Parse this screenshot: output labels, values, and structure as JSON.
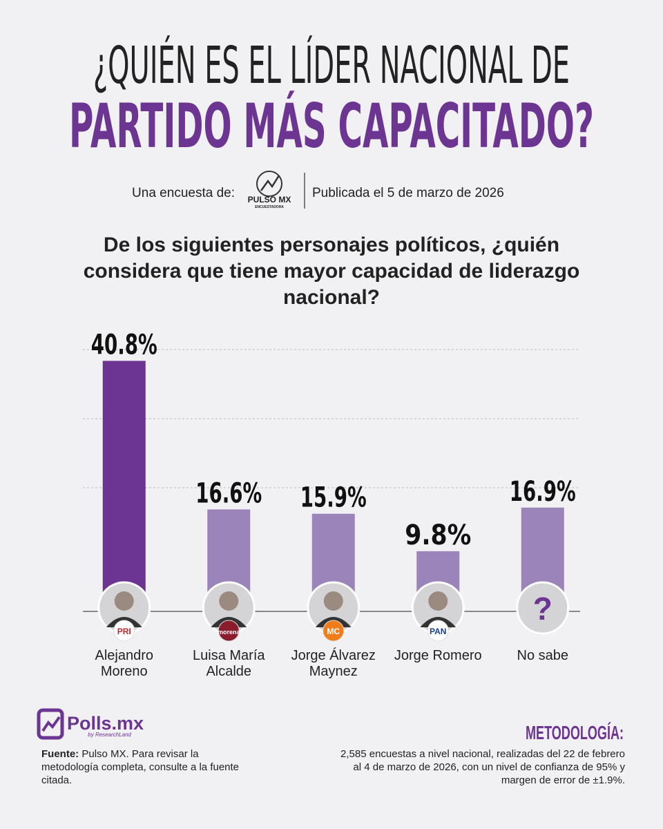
{
  "header": {
    "title_line1": "¿QUIÉN ES EL LÍDER NACIONAL DE",
    "title_line2": "PARTIDO MÁS CAPACITADO?",
    "survey_by": "Una encuesta de:",
    "pollster": "PULSO MX",
    "pollster_sub": "ENCUESTADORA",
    "published": "Publicada el 5 de marzo de 2026"
  },
  "chart_data": {
    "type": "bar",
    "title": "De los siguientes personajes políticos, ¿quién considera que tiene mayor capacidad de liderazgo nacional?",
    "categories": [
      "Alejandro Moreno",
      "Luisa María Alcalde",
      "Jorge Álvarez Maynez",
      "Jorge Romero",
      "No sabe"
    ],
    "values": [
      40.8,
      16.6,
      15.9,
      9.8,
      16.9
    ],
    "value_labels": [
      "40.8%",
      "16.6%",
      "15.9%",
      "9.8%",
      "16.9%"
    ],
    "colors": [
      "#6b3591",
      "#9b84b9",
      "#9b84b9",
      "#9b84b9",
      "#9b84b9"
    ],
    "party_labels": [
      "PRI",
      "morena",
      "MC",
      "PAN",
      null
    ],
    "unknown_icon": "?",
    "ylim": [
      0,
      45
    ]
  },
  "footer": {
    "brand": "Polls.mx",
    "brand_sub": "by ResearchLand",
    "source_label": "Fuente:",
    "source_text": "Pulso MX. Para revisar la metodología completa, consulte a la fuente citada.",
    "methodology_title": "METODOLOGÍA:",
    "methodology_text": "2,585 encuestas a nivel nacional, realizadas del 22 de febrero al 4 de marzo de 2026, con un nivel de confianza de 95% y margen de error de ±1.9%."
  }
}
